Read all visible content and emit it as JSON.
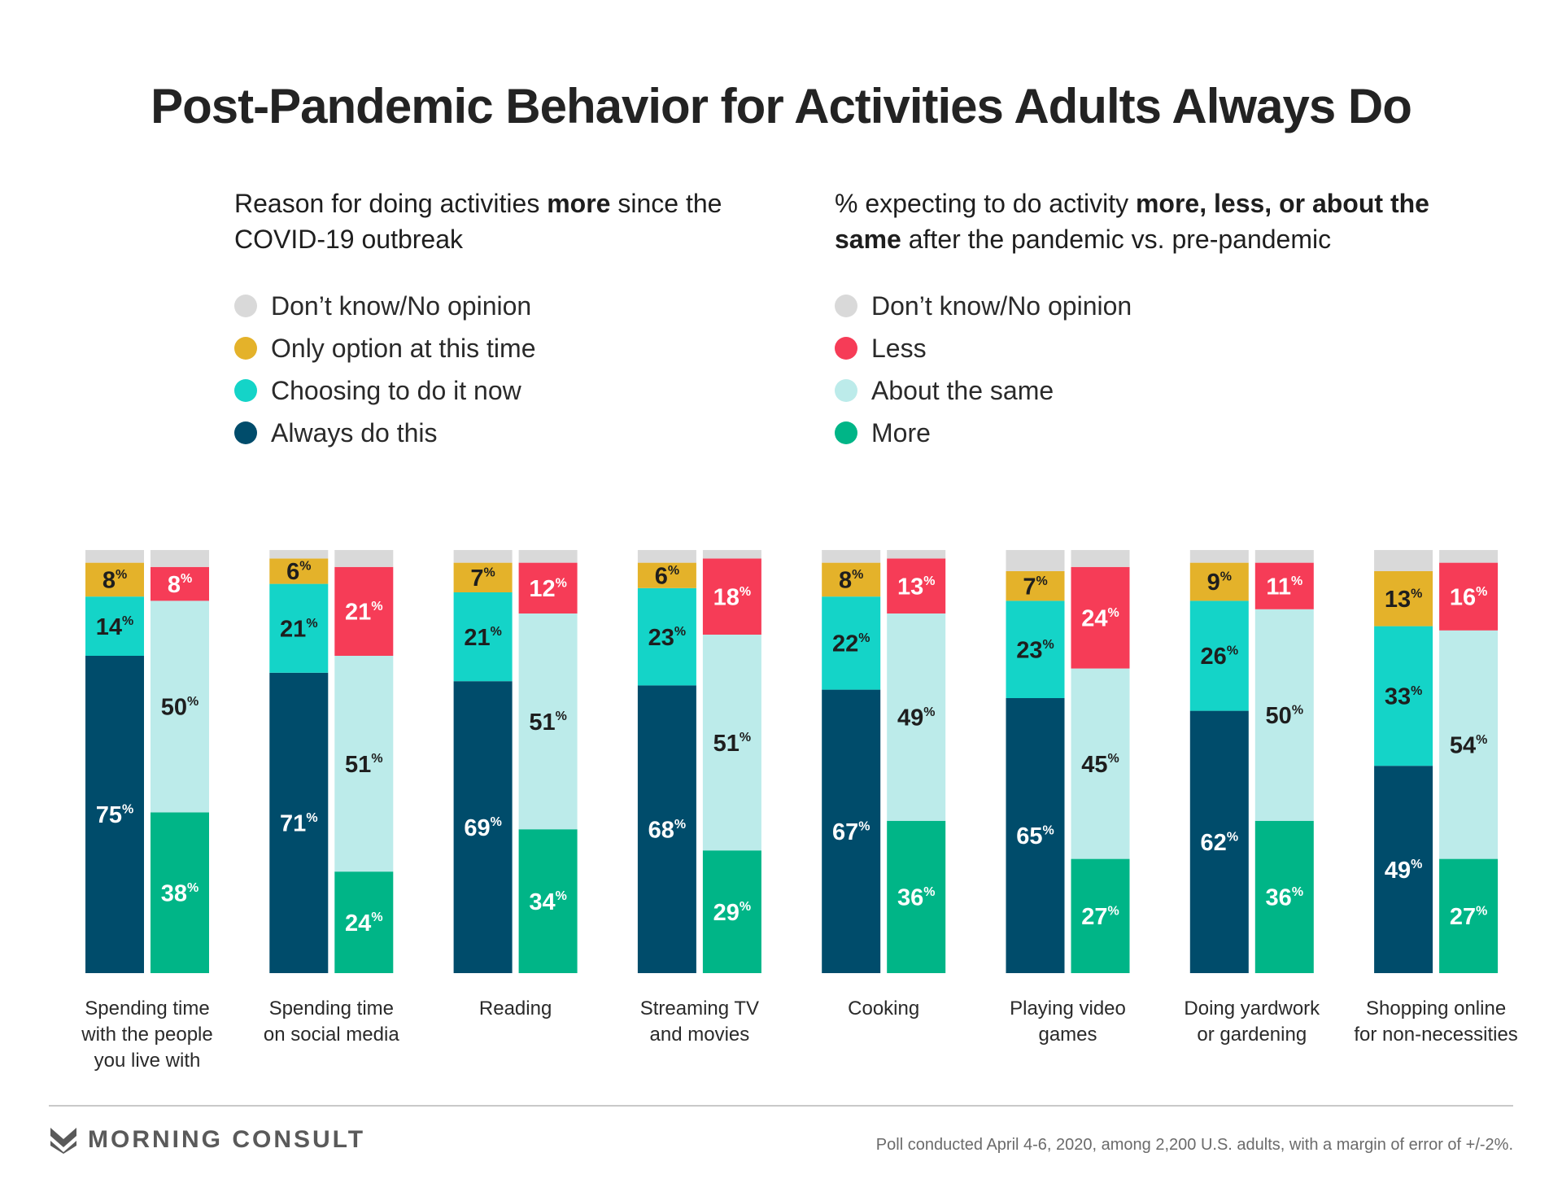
{
  "title": "Post-Pandemic Behavior for Activities Adults Always Do",
  "left_panel": {
    "subtitle_pre": "Reason for doing activities ",
    "subtitle_bold": "more",
    "subtitle_post": " since the COVID-19 outbreak",
    "legend": [
      {
        "label": "Don’t know/No opinion",
        "color": "#d9d9d9"
      },
      {
        "label": "Only option at this time",
        "color": "#e4b22a"
      },
      {
        "label": "Choosing to do it now",
        "color": "#14d4c8"
      },
      {
        "label": "Always do this",
        "color": "#004c6b"
      }
    ]
  },
  "right_panel": {
    "subtitle_pre": "% expecting to do activity ",
    "subtitle_bold": "more, less, or about the same",
    "subtitle_post": " after the pandemic vs. pre-pandemic",
    "legend": [
      {
        "label": "Don’t know/No opinion",
        "color": "#d9d9d9"
      },
      {
        "label": "Less",
        "color": "#f63c57"
      },
      {
        "label": "About the same",
        "color": "#bcebea"
      },
      {
        "label": "More",
        "color": "#00b587"
      }
    ]
  },
  "chart_data": {
    "type": "bar",
    "stacked": true,
    "categories": [
      "Spending time with the people you live with",
      "Spending time on social media",
      "Reading",
      "Streaming TV and movies",
      "Cooking",
      "Playing video games",
      "Doing yardwork or gardening",
      "Shopping online for non-necessities"
    ],
    "category_lines": [
      [
        "Spending time",
        "with the people",
        "you live with"
      ],
      [
        "Spending time",
        "on social media"
      ],
      [
        "Reading"
      ],
      [
        "Streaming TV",
        "and movies"
      ],
      [
        "Cooking"
      ],
      [
        "Playing video",
        "games"
      ],
      [
        "Doing yardwork",
        "or gardening"
      ],
      [
        "Shopping online",
        "for non-necessities"
      ]
    ],
    "reason_series": [
      {
        "name": "Always do this",
        "values": [
          75,
          71,
          69,
          68,
          67,
          65,
          62,
          49
        ]
      },
      {
        "name": "Choosing to do it now",
        "values": [
          14,
          21,
          21,
          23,
          22,
          23,
          26,
          33
        ]
      },
      {
        "name": "Only option at this time",
        "values": [
          8,
          6,
          7,
          6,
          8,
          7,
          9,
          13
        ]
      },
      {
        "name": "Don’t know/No opinion",
        "values": [
          3,
          2,
          3,
          3,
          3,
          5,
          3,
          5
        ]
      }
    ],
    "expectation_series": [
      {
        "name": "More",
        "values": [
          38,
          24,
          34,
          29,
          36,
          27,
          36,
          27
        ]
      },
      {
        "name": "About the same",
        "values": [
          50,
          51,
          51,
          51,
          49,
          45,
          50,
          54
        ]
      },
      {
        "name": "Less",
        "values": [
          8,
          21,
          12,
          18,
          13,
          24,
          11,
          16
        ]
      },
      {
        "name": "Don’t know/No opinion",
        "values": [
          4,
          4,
          3,
          2,
          2,
          4,
          3,
          3
        ]
      }
    ],
    "label_text_colors": {
      "reason": [
        "#ffffff",
        "#1e1e1e",
        "#1e1e1e",
        null
      ],
      "expectation": [
        "#ffffff",
        "#1e1e1e",
        "#ffffff",
        null
      ]
    },
    "percent_sign": "%",
    "ylim": [
      0,
      100
    ]
  },
  "footer": {
    "brand": "MORNING CONSULT",
    "note": "Poll conducted April 4-6, 2020, among 2,200 U.S. adults, with a margin of error of +/-2%."
  }
}
